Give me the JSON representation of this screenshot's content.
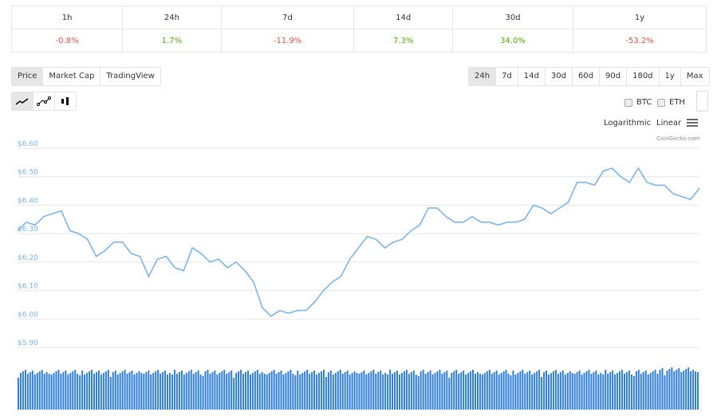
{
  "changes": [
    {
      "label": "1h",
      "value": "-0.8%",
      "dir": "neg"
    },
    {
      "label": "24h",
      "value": "1.7%",
      "dir": "pos"
    },
    {
      "label": "7d",
      "value": "-11.9%",
      "dir": "neg"
    },
    {
      "label": "14d",
      "value": "7.3%",
      "dir": "pos"
    },
    {
      "label": "30d",
      "value": "34.0%",
      "dir": "pos"
    },
    {
      "label": "1y",
      "value": "-53.2%",
      "dir": "neg"
    }
  ],
  "chart_tabs": [
    "Price",
    "Market Cap",
    "TradingView"
  ],
  "ranges": [
    "24h",
    "7d",
    "14d",
    "30d",
    "60d",
    "90d",
    "180d",
    "1y",
    "Max"
  ],
  "compare": {
    "btc": "BTC",
    "eth": "ETH"
  },
  "scale": {
    "log": "Logarithmic",
    "linear": "Linear"
  },
  "credit": "CoinGecko.com",
  "colors": {
    "line": "#7cb5ec",
    "volume": "#2f7ed8",
    "neg": "#e15241",
    "pos": "#4eaf0a"
  },
  "chart_data": {
    "type": "line",
    "ylim": [
      5.9,
      6.6
    ],
    "yticks": [
      "$6.60",
      "$6.50",
      "$6.40",
      "$6.30",
      "$6.20",
      "$6.10",
      "$6.00",
      "$5.90"
    ],
    "grid": true,
    "volume_shown": true,
    "values": [
      6.31,
      6.34,
      6.33,
      6.36,
      6.37,
      6.38,
      6.31,
      6.3,
      6.28,
      6.22,
      6.24,
      6.27,
      6.27,
      6.23,
      6.22,
      6.15,
      6.21,
      6.22,
      6.18,
      6.17,
      6.25,
      6.23,
      6.2,
      6.21,
      6.18,
      6.2,
      6.17,
      6.13,
      6.04,
      6.01,
      6.03,
      6.02,
      6.03,
      6.03,
      6.06,
      6.1,
      6.13,
      6.15,
      6.21,
      6.25,
      6.29,
      6.28,
      6.25,
      6.27,
      6.28,
      6.31,
      6.33,
      6.39,
      6.39,
      6.36,
      6.34,
      6.34,
      6.36,
      6.34,
      6.34,
      6.33,
      6.34,
      6.34,
      6.35,
      6.4,
      6.39,
      6.37,
      6.39,
      6.41,
      6.48,
      6.48,
      6.47,
      6.52,
      6.53,
      6.5,
      6.48,
      6.53,
      6.48,
      6.47,
      6.47,
      6.44,
      6.43,
      6.42,
      6.46
    ]
  }
}
